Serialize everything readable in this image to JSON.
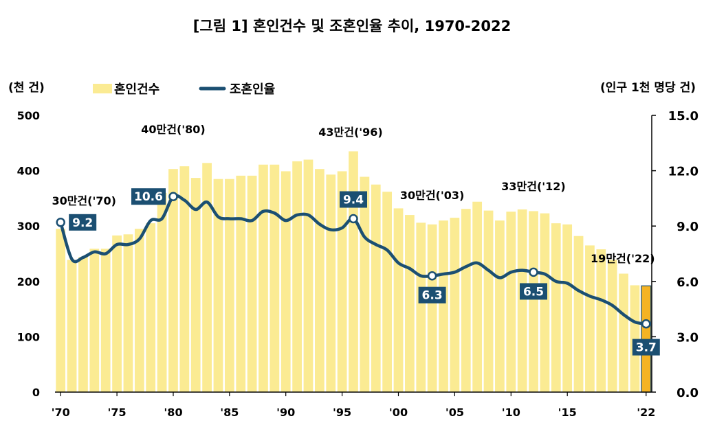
{
  "chart_data": {
    "type": "bar+line",
    "title": "[그림 1] 혼인건수 및 조혼인율 추이, 1970-2022",
    "left_axis_label": "(천 건)",
    "right_axis_label": "(인구 1천 명당 건)",
    "left_ylim": [
      0,
      500
    ],
    "left_ticks": [
      "0",
      "100",
      "200",
      "300",
      "400",
      "500"
    ],
    "right_ylim": [
      0.0,
      15.0
    ],
    "right_ticks": [
      "0.0",
      "3.0",
      "6.0",
      "9.0",
      "12.0",
      "15.0"
    ],
    "x_tick_labels": [
      "'70",
      "'75",
      "'80",
      "'85",
      "'90",
      "'95",
      "'00",
      "'05",
      "'10",
      "'15",
      "'22"
    ],
    "x_tick_years": [
      1970,
      1975,
      1980,
      1985,
      1990,
      1995,
      2000,
      2005,
      2010,
      2015,
      2022
    ],
    "years": [
      1970,
      1971,
      1972,
      1973,
      1974,
      1975,
      1976,
      1977,
      1978,
      1979,
      1980,
      1981,
      1982,
      1983,
      1984,
      1985,
      1986,
      1987,
      1988,
      1989,
      1990,
      1991,
      1992,
      1993,
      1994,
      1995,
      1996,
      1997,
      1998,
      1999,
      2000,
      2001,
      2002,
      2003,
      2004,
      2005,
      2006,
      2007,
      2008,
      2009,
      2010,
      2011,
      2012,
      2013,
      2014,
      2015,
      2016,
      2017,
      2018,
      2019,
      2020,
      2021,
      2022
    ],
    "series": [
      {
        "name": "혼인건수",
        "axis": "left",
        "kind": "bar",
        "color": "#fbeb93",
        "highlight_color": "#f5b324",
        "values": [
          295,
          239,
          244,
          259,
          259,
          283,
          285,
          295,
          305,
          360,
          403,
          408,
          387,
          414,
          385,
          385,
          391,
          391,
          411,
          411,
          399,
          417,
          420,
          403,
          393,
          399,
          435,
          389,
          375,
          362,
          332,
          320,
          306,
          303,
          310,
          315,
          331,
          344,
          328,
          310,
          326,
          330,
          327,
          323,
          305,
          303,
          282,
          265,
          258,
          239,
          214,
          193,
          192
        ]
      },
      {
        "name": "조혼인율",
        "axis": "right",
        "kind": "line",
        "color": "#1b4f72",
        "values": [
          9.2,
          7.2,
          7.3,
          7.6,
          7.5,
          8.0,
          8.0,
          8.3,
          9.3,
          9.4,
          10.6,
          10.4,
          9.9,
          10.3,
          9.5,
          9.4,
          9.4,
          9.3,
          9.8,
          9.7,
          9.3,
          9.6,
          9.6,
          9.1,
          8.8,
          8.9,
          9.4,
          8.4,
          8.0,
          7.7,
          7.0,
          6.7,
          6.3,
          6.3,
          6.4,
          6.5,
          6.8,
          7.0,
          6.6,
          6.2,
          6.5,
          6.6,
          6.5,
          6.4,
          6.0,
          5.9,
          5.5,
          5.2,
          5.0,
          4.7,
          4.2,
          3.8,
          3.7
        ]
      }
    ],
    "legend": [
      "혼인건수",
      "조혼인율"
    ],
    "legend_position": "top-left",
    "bar_annotations": [
      {
        "year": 1970,
        "text": "30만건('70)"
      },
      {
        "year": 1980,
        "text": "40만건('80)"
      },
      {
        "year": 1996,
        "text": "43만건('96)"
      },
      {
        "year": 2003,
        "text": "30만건('03)"
      },
      {
        "year": 2012,
        "text": "33만건('12)"
      },
      {
        "year": 2022,
        "text": "19만건('22)"
      }
    ],
    "rate_labels": [
      {
        "year": 1970,
        "text": "9.2"
      },
      {
        "year": 1980,
        "text": "10.6"
      },
      {
        "year": 1996,
        "text": "9.4"
      },
      {
        "year": 2003,
        "text": "6.3"
      },
      {
        "year": 2012,
        "text": "6.5"
      },
      {
        "year": 2022,
        "text": "3.7"
      }
    ],
    "grid": false
  }
}
